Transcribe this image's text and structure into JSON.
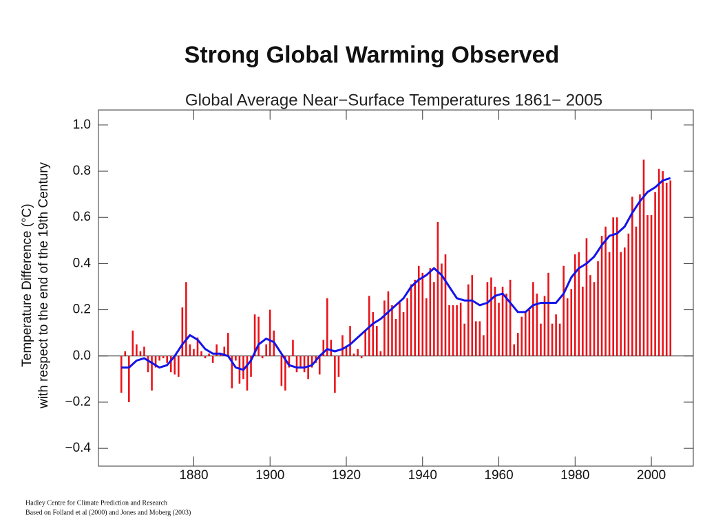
{
  "page": {
    "title": "Strong Global Warming Observed",
    "footnotes": [
      "Hadley Centre for Climate Prediction and Research",
      "Based on Folland et al (2000) and Jones and Moberg (2003)"
    ]
  },
  "chart_data": {
    "type": "bar",
    "title": "Global Average Near−Surface Temperatures 1861− 2005",
    "y_label": [
      "Temperature Difference (°C)",
      "with respect to the end of the 19th Century"
    ],
    "x": [
      1861,
      1862,
      1863,
      1864,
      1865,
      1866,
      1867,
      1868,
      1869,
      1870,
      1871,
      1872,
      1873,
      1874,
      1875,
      1876,
      1877,
      1878,
      1879,
      1880,
      1881,
      1882,
      1883,
      1884,
      1885,
      1886,
      1887,
      1888,
      1889,
      1890,
      1891,
      1892,
      1893,
      1894,
      1895,
      1896,
      1897,
      1898,
      1899,
      1900,
      1901,
      1902,
      1903,
      1904,
      1905,
      1906,
      1907,
      1908,
      1909,
      1910,
      1911,
      1912,
      1913,
      1914,
      1915,
      1916,
      1917,
      1918,
      1919,
      1920,
      1921,
      1922,
      1923,
      1924,
      1925,
      1926,
      1927,
      1928,
      1929,
      1930,
      1931,
      1932,
      1933,
      1934,
      1935,
      1936,
      1937,
      1938,
      1939,
      1940,
      1941,
      1942,
      1943,
      1944,
      1945,
      1946,
      1947,
      1948,
      1949,
      1950,
      1951,
      1952,
      1953,
      1954,
      1955,
      1956,
      1957,
      1958,
      1959,
      1960,
      1961,
      1962,
      1963,
      1964,
      1965,
      1966,
      1967,
      1968,
      1969,
      1970,
      1971,
      1972,
      1973,
      1974,
      1975,
      1976,
      1977,
      1978,
      1979,
      1980,
      1981,
      1982,
      1983,
      1984,
      1985,
      1986,
      1987,
      1988,
      1989,
      1990,
      1991,
      1992,
      1993,
      1994,
      1995,
      1996,
      1997,
      1998,
      1999,
      2000,
      2001,
      2002,
      2003,
      2004,
      2005
    ],
    "values": [
      -0.16,
      0.02,
      -0.2,
      0.11,
      0.05,
      0.02,
      0.04,
      -0.07,
      -0.15,
      -0.05,
      -0.02,
      -0.01,
      -0.03,
      -0.07,
      -0.08,
      -0.09,
      0.21,
      0.32,
      0.05,
      0.03,
      0.08,
      0.02,
      -0.01,
      0.01,
      -0.03,
      0.05,
      0.01,
      0.04,
      0.1,
      -0.14,
      -0.02,
      -0.12,
      -0.1,
      -0.15,
      -0.09,
      0.18,
      0.17,
      -0.01,
      0.05,
      0.2,
      0.11,
      0.0,
      -0.13,
      -0.15,
      -0.05,
      0.07,
      -0.07,
      -0.05,
      -0.07,
      -0.1,
      -0.05,
      -0.03,
      -0.08,
      0.07,
      0.25,
      0.07,
      -0.16,
      -0.09,
      0.09,
      0.04,
      0.13,
      0.01,
      0.03,
      -0.01,
      0.11,
      0.26,
      0.19,
      0.13,
      0.02,
      0.24,
      0.28,
      0.22,
      0.16,
      0.23,
      0.19,
      0.25,
      0.31,
      0.33,
      0.39,
      0.36,
      0.25,
      0.38,
      0.32,
      0.58,
      0.4,
      0.44,
      0.22,
      0.22,
      0.22,
      0.23,
      0.14,
      0.31,
      0.35,
      0.15,
      0.15,
      0.09,
      0.32,
      0.34,
      0.3,
      0.23,
      0.3,
      0.27,
      0.33,
      0.05,
      0.1,
      0.17,
      0.19,
      0.2,
      0.32,
      0.27,
      0.14,
      0.26,
      0.36,
      0.14,
      0.18,
      0.14,
      0.39,
      0.25,
      0.29,
      0.44,
      0.45,
      0.3,
      0.51,
      0.35,
      0.32,
      0.41,
      0.52,
      0.56,
      0.45,
      0.6,
      0.6,
      0.45,
      0.47,
      0.53,
      0.69,
      0.56,
      0.7,
      0.85,
      0.61,
      0.61,
      0.71,
      0.81,
      0.8,
      0.75,
      0.76
    ],
    "color": "#e8141a",
    "smooth_x": [
      1861,
      1863,
      1865,
      1867,
      1869,
      1871,
      1873,
      1875,
      1877,
      1879,
      1881,
      1883,
      1885,
      1887,
      1889,
      1891,
      1893,
      1895,
      1897,
      1899,
      1901,
      1903,
      1905,
      1907,
      1909,
      1911,
      1913,
      1915,
      1917,
      1919,
      1921,
      1923,
      1925,
      1927,
      1929,
      1931,
      1933,
      1935,
      1937,
      1939,
      1941,
      1943,
      1945,
      1947,
      1949,
      1951,
      1953,
      1955,
      1957,
      1959,
      1961,
      1963,
      1965,
      1967,
      1969,
      1971,
      1973,
      1975,
      1977,
      1979,
      1981,
      1983,
      1985,
      1987,
      1989,
      1991,
      1993,
      1995,
      1997,
      1999,
      2001,
      2003,
      2005
    ],
    "smooth_values": [
      -0.05,
      -0.05,
      -0.02,
      -0.01,
      -0.03,
      -0.05,
      -0.04,
      0.0,
      0.05,
      0.09,
      0.07,
      0.03,
      0.01,
      0.01,
      0.0,
      -0.05,
      -0.06,
      -0.02,
      0.05,
      0.075,
      0.06,
      0.01,
      -0.04,
      -0.05,
      -0.05,
      -0.04,
      0.0,
      0.03,
      0.02,
      0.03,
      0.05,
      0.08,
      0.11,
      0.14,
      0.16,
      0.19,
      0.22,
      0.25,
      0.3,
      0.33,
      0.35,
      0.38,
      0.35,
      0.3,
      0.25,
      0.24,
      0.24,
      0.22,
      0.23,
      0.26,
      0.27,
      0.23,
      0.19,
      0.19,
      0.22,
      0.23,
      0.23,
      0.23,
      0.27,
      0.34,
      0.38,
      0.4,
      0.43,
      0.48,
      0.52,
      0.53,
      0.56,
      0.62,
      0.67,
      0.71,
      0.73,
      0.76,
      0.77
    ],
    "smooth_color": "#1414e8",
    "xlim": [
      1855,
      2011
    ],
    "ylim": [
      -0.477,
      1.065
    ],
    "xticks": [
      1880,
      1900,
      1920,
      1940,
      1960,
      1980,
      2000
    ],
    "yticks": [
      {
        "value": -0.4,
        "label": "−0.4"
      },
      {
        "value": -0.2,
        "label": "−0.2"
      },
      {
        "value": 0,
        "label": "0.0"
      },
      0.2,
      0.4,
      0.6,
      0.8,
      {
        "value": 1,
        "label": "1.0"
      }
    ]
  }
}
